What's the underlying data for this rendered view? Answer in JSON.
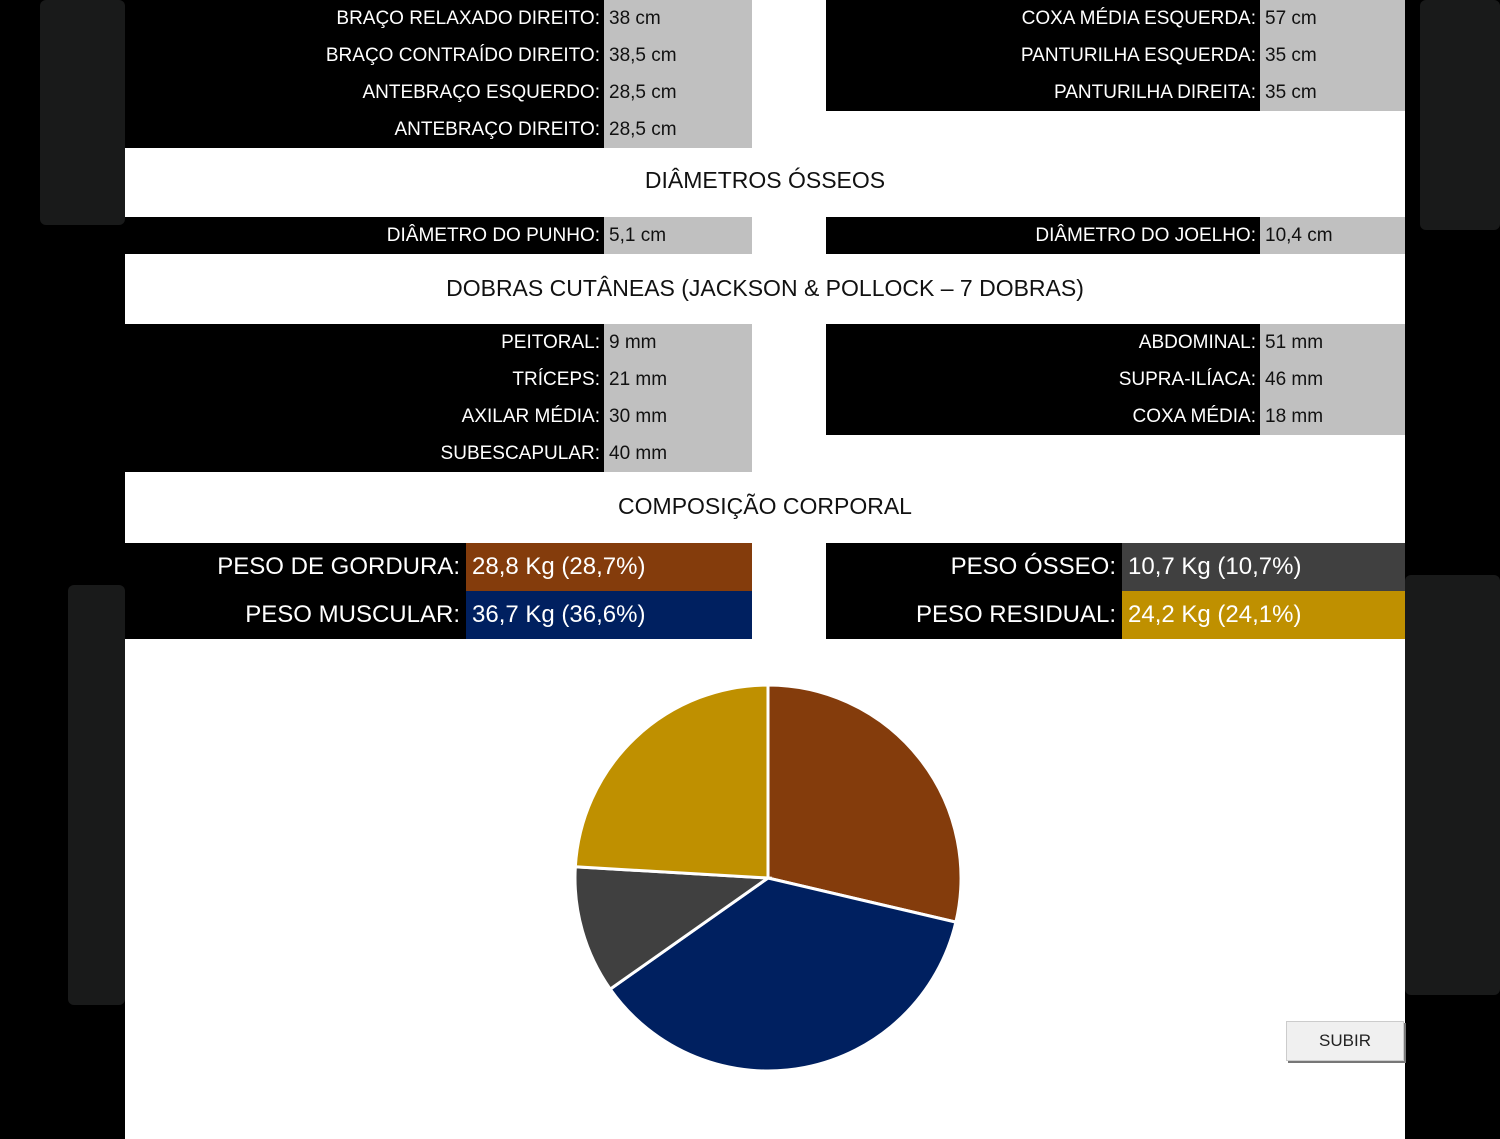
{
  "perimetros_left": [
    {
      "label": "BRAÇO RELAXADO DIREITO:",
      "value": "38 cm"
    },
    {
      "label": "BRAÇO CONTRAÍDO DIREITO:",
      "value": "38,5 cm"
    },
    {
      "label": "ANTEBRAÇO ESQUERDO:",
      "value": "28,5 cm"
    },
    {
      "label": "ANTEBRAÇO DIREITO:",
      "value": "28,5 cm"
    }
  ],
  "perimetros_right": [
    {
      "label": "COXA MÉDIA ESQUERDA:",
      "value": "57 cm"
    },
    {
      "label": "PANTURILHA ESQUERDA:",
      "value": "35 cm"
    },
    {
      "label": "PANTURILHA DIREITA:",
      "value": "35 cm"
    }
  ],
  "diametros": {
    "title": "DIÂMETROS ÓSSEOS",
    "left": {
      "label": "DIÂMETRO DO PUNHO:",
      "value": "5,1 cm"
    },
    "right": {
      "label": "DIÂMETRO DO JOELHO:",
      "value": "10,4 cm"
    }
  },
  "dobras": {
    "title": "DOBRAS CUTÂNEAS (JACKSON & POLLOCK – 7 DOBRAS)",
    "left": [
      {
        "label": "PEITORAL:",
        "value": "9 mm"
      },
      {
        "label": "TRÍCEPS:",
        "value": "21 mm"
      },
      {
        "label": "AXILAR MÉDIA:",
        "value": "30 mm"
      },
      {
        "label": "SUBESCAPULAR:",
        "value": "40 mm"
      }
    ],
    "right": [
      {
        "label": "ABDOMINAL:",
        "value": "51 mm"
      },
      {
        "label": "SUPRA-ILÍACA:",
        "value": "46 mm"
      },
      {
        "label": "COXA MÉDIA:",
        "value": "18 mm"
      }
    ]
  },
  "composicao": {
    "title": "COMPOSIÇÃO CORPORAL",
    "gordura": {
      "label": "PESO DE GORDURA:",
      "value": "28,8 Kg (28,7%)",
      "color": "#843c0c"
    },
    "muscular": {
      "label": "PESO MUSCULAR:",
      "value": "36,7 Kg (36,6%)",
      "color": "#002060"
    },
    "osseo": {
      "label": "PESO ÓSSEO:",
      "value": "10,7 Kg (10,7%)",
      "color": "#404040"
    },
    "residual": {
      "label": "PESO RESIDUAL:",
      "value": "24,2 Kg (24,1%)",
      "color": "#bf9000"
    }
  },
  "chart_data": {
    "type": "pie",
    "categories": [
      "Peso de Gordura",
      "Peso Muscular",
      "Peso Ósseo",
      "Peso Residual"
    ],
    "values": [
      28.7,
      36.6,
      10.7,
      24.1
    ],
    "colors": [
      "#843c0c",
      "#002060",
      "#404040",
      "#bf9000"
    ],
    "start_angle_deg": 0,
    "direction": "clockwise"
  },
  "button": {
    "subir": "SUBIR"
  }
}
